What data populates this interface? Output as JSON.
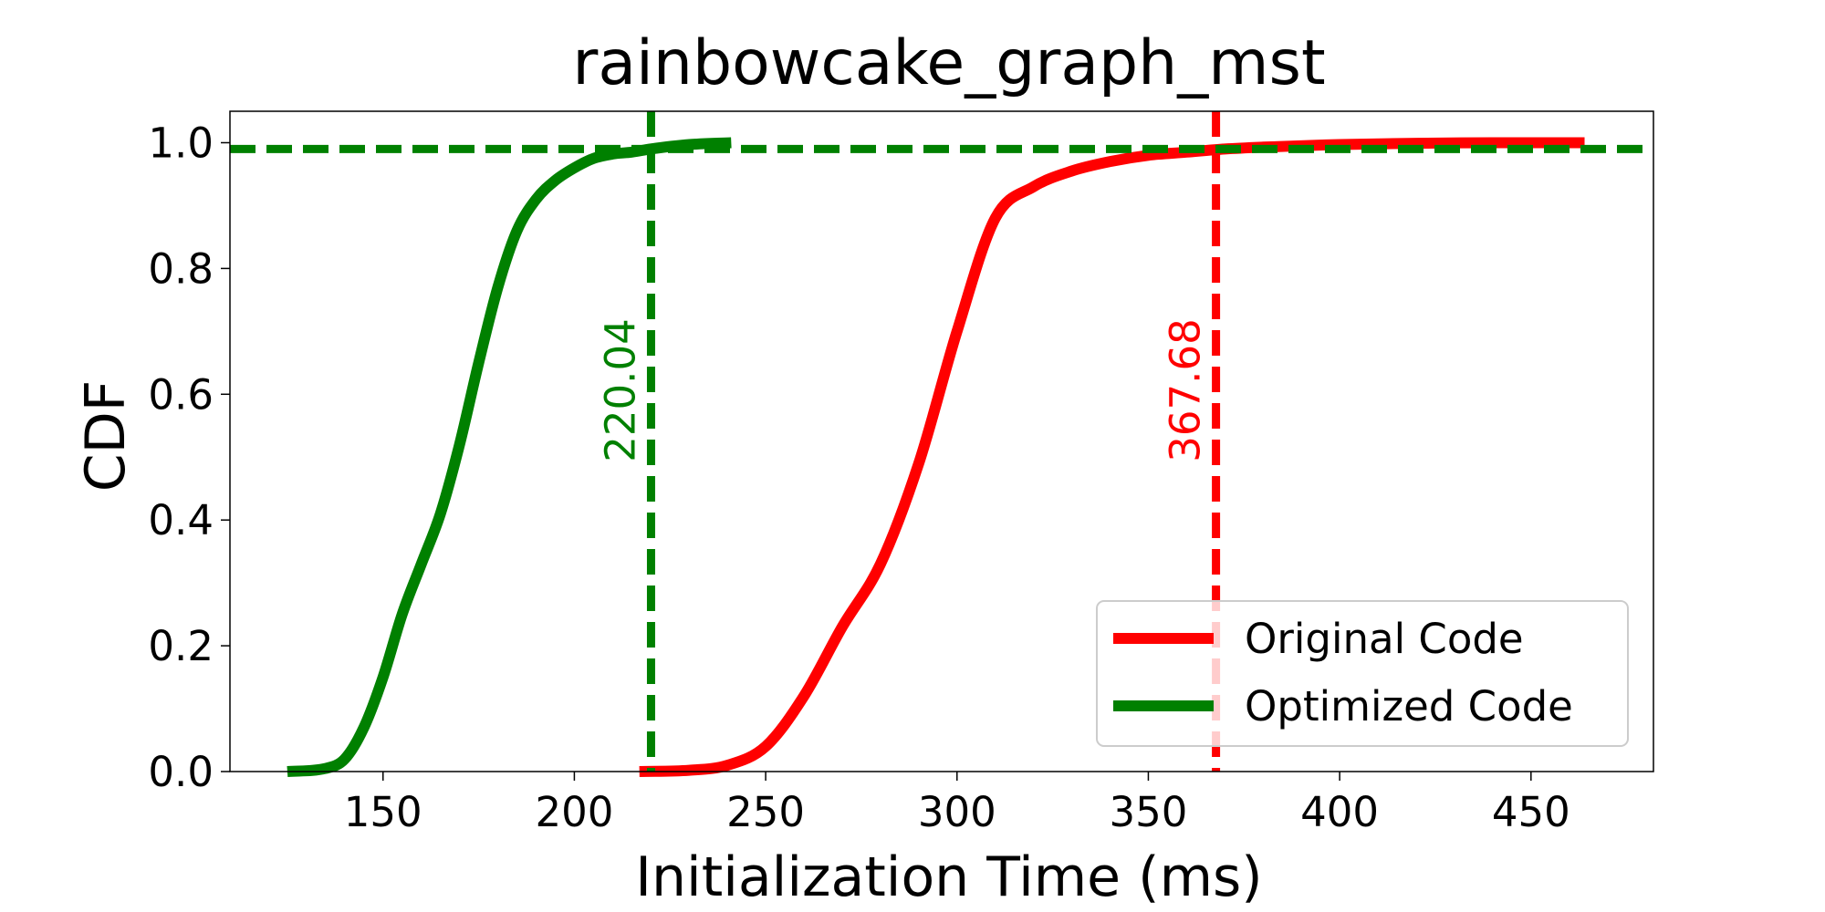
{
  "chart_data": {
    "type": "line",
    "title": "rainbowcake_graph_mst",
    "xlabel": "Initialization Time (ms)",
    "ylabel": "CDF",
    "xlim": [
      110,
      482
    ],
    "ylim": [
      0.0,
      1.05
    ],
    "xticks": [
      150,
      200,
      250,
      300,
      350,
      400,
      450
    ],
    "xtick_labels": [
      "150",
      "200",
      "250",
      "300",
      "350",
      "400",
      "450"
    ],
    "yticks": [
      0.0,
      0.2,
      0.4,
      0.6,
      0.8,
      1.0
    ],
    "ytick_labels": [
      "0.0",
      "0.2",
      "0.4",
      "0.6",
      "0.8",
      "1.0"
    ],
    "grid": false,
    "legend_position": "lower-right",
    "series": [
      {
        "name": "Original Code",
        "color": "#ff0000",
        "x": [
          217,
          230,
          240,
          250,
          260,
          270,
          280,
          290,
          300,
          310,
          320,
          330,
          340,
          350,
          360,
          370,
          380,
          400,
          420,
          440,
          464
        ],
        "y": [
          0.0,
          0.002,
          0.01,
          0.04,
          0.12,
          0.23,
          0.33,
          0.49,
          0.7,
          0.88,
          0.93,
          0.955,
          0.97,
          0.98,
          0.985,
          0.99,
          0.993,
          0.997,
          0.999,
          1.0,
          1.0
        ]
      },
      {
        "name": "Optimized Code",
        "color": "#008000",
        "x": [
          125,
          135,
          140,
          145,
          150,
          155,
          160,
          165,
          170,
          175,
          180,
          185,
          190,
          195,
          200,
          205,
          210,
          215,
          220,
          230,
          241
        ],
        "y": [
          0.0,
          0.005,
          0.02,
          0.07,
          0.15,
          0.25,
          0.33,
          0.41,
          0.52,
          0.65,
          0.77,
          0.86,
          0.91,
          0.94,
          0.96,
          0.975,
          0.982,
          0.985,
          0.99,
          0.997,
          1.0
        ]
      }
    ],
    "reference_lines": [
      {
        "orientation": "vertical",
        "value": 220.04,
        "label": "220.04",
        "color": "#008000"
      },
      {
        "orientation": "vertical",
        "value": 367.68,
        "label": "367.68",
        "color": "#ff0000"
      },
      {
        "orientation": "horizontal",
        "value": 0.99,
        "color": "#008000"
      }
    ]
  }
}
